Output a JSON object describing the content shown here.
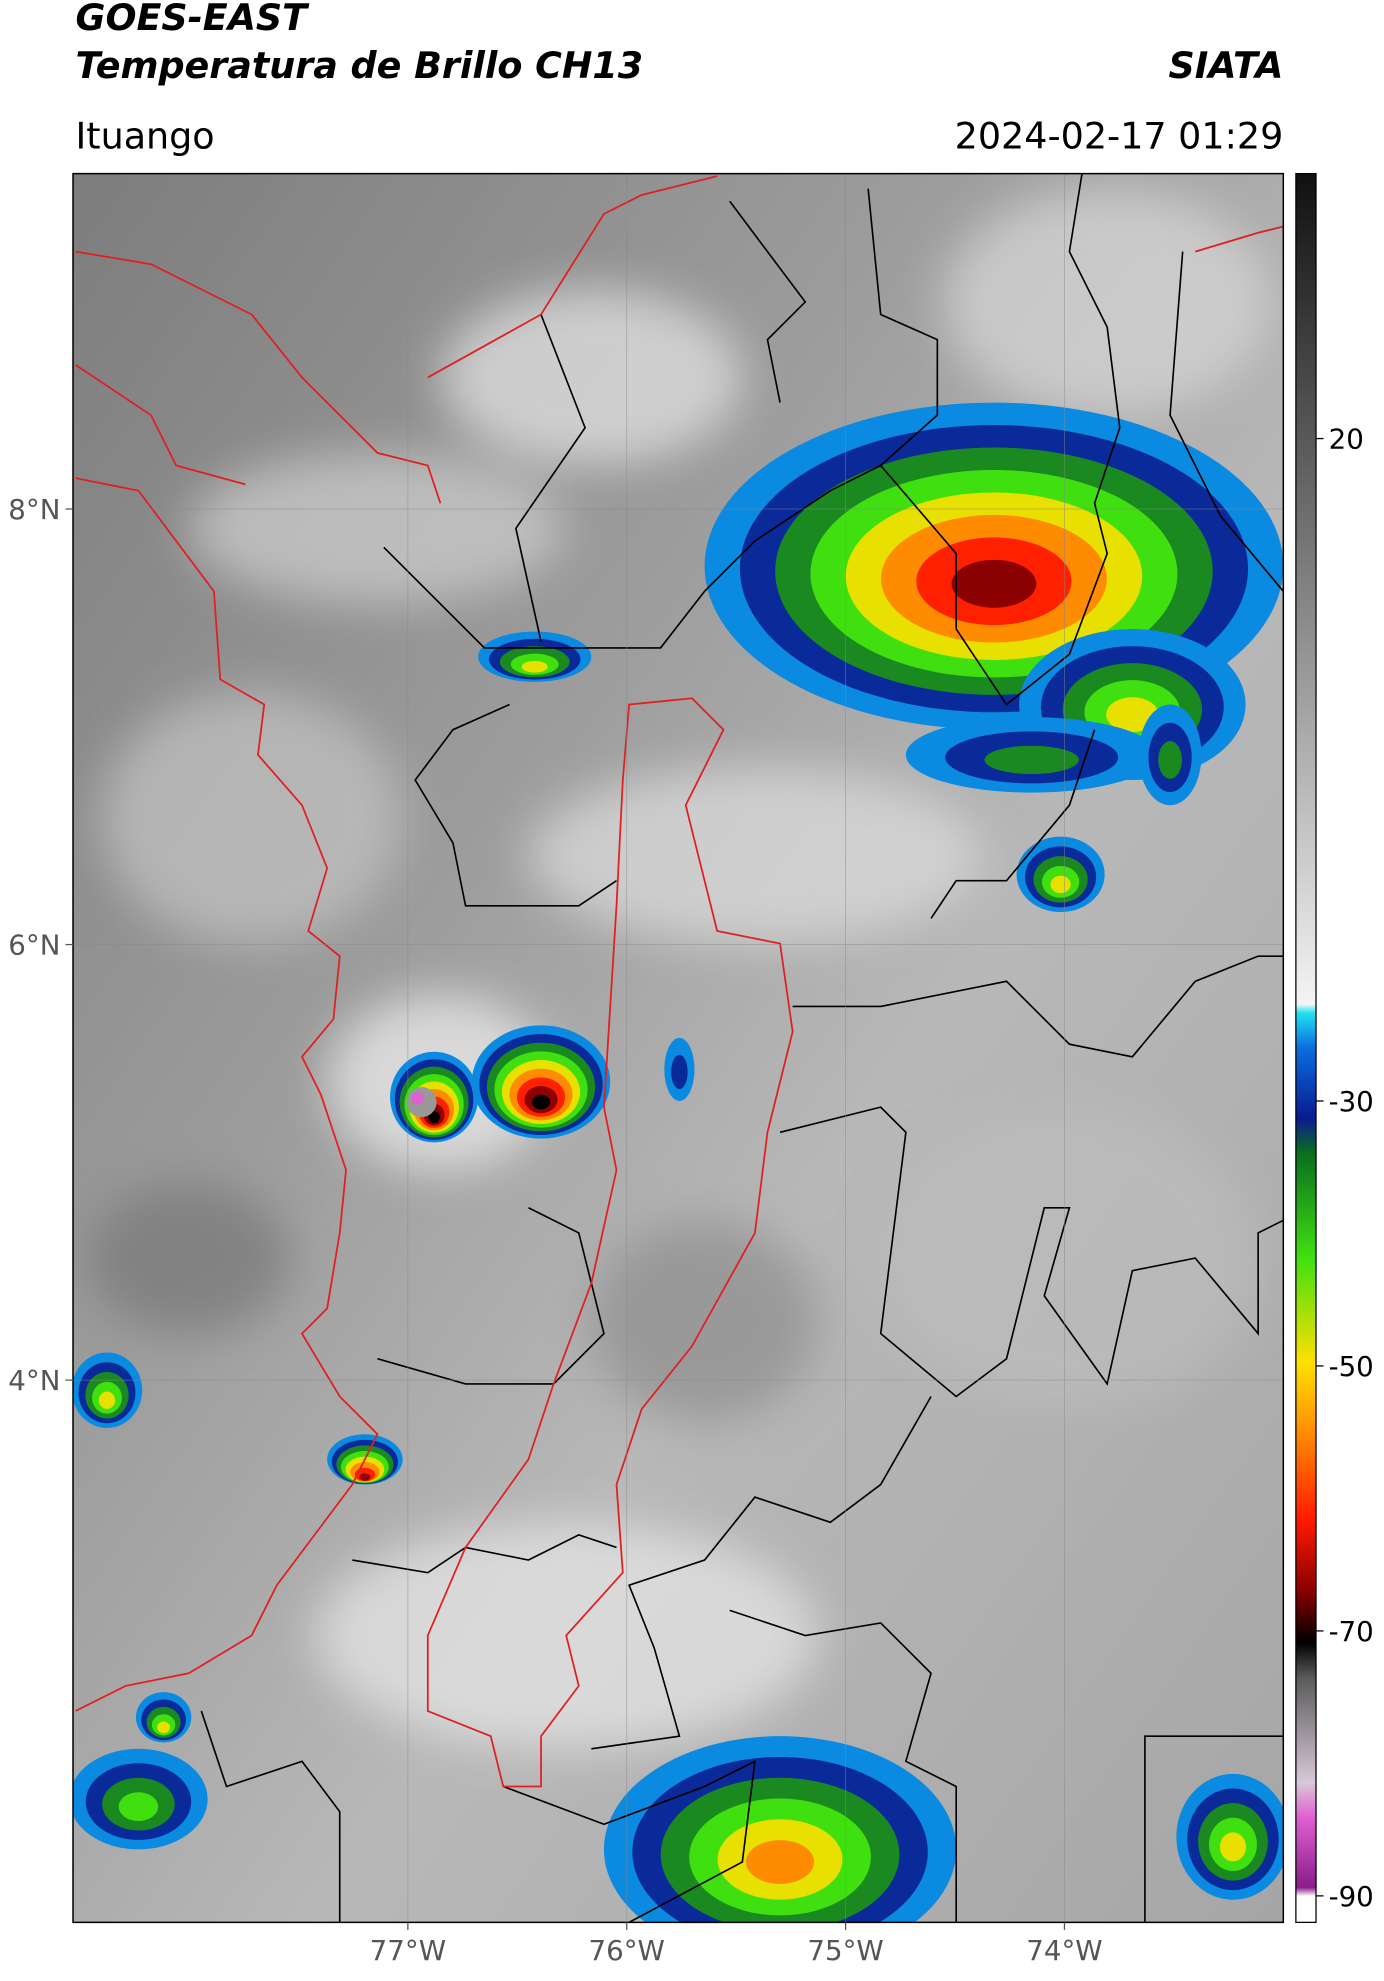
{
  "chart_data": {
    "type": "map",
    "title": "GOES-EAST",
    "subtitle": "Temperatura de Brillo CH13",
    "source": "SIATA",
    "location": "Ituango",
    "datetime": "2024-02-17 01:29",
    "xlim": [
      -78.53,
      -73.0
    ],
    "ylim": [
      1.51,
      9.54
    ],
    "xticks": [
      {
        "value": -77,
        "label": "77°W"
      },
      {
        "value": -76,
        "label": "76°W"
      },
      {
        "value": -75,
        "label": "75°W"
      },
      {
        "value": -74,
        "label": "74°W"
      }
    ],
    "yticks": [
      {
        "value": 8,
        "label": "8°N"
      },
      {
        "value": 6,
        "label": "6°N"
      },
      {
        "value": 4,
        "label": "4°N"
      }
    ],
    "grid": true,
    "colorbar": {
      "clim": [
        -92,
        40
      ],
      "ticks": [
        20,
        -30,
        -50,
        -70,
        -90
      ]
    }
  }
}
